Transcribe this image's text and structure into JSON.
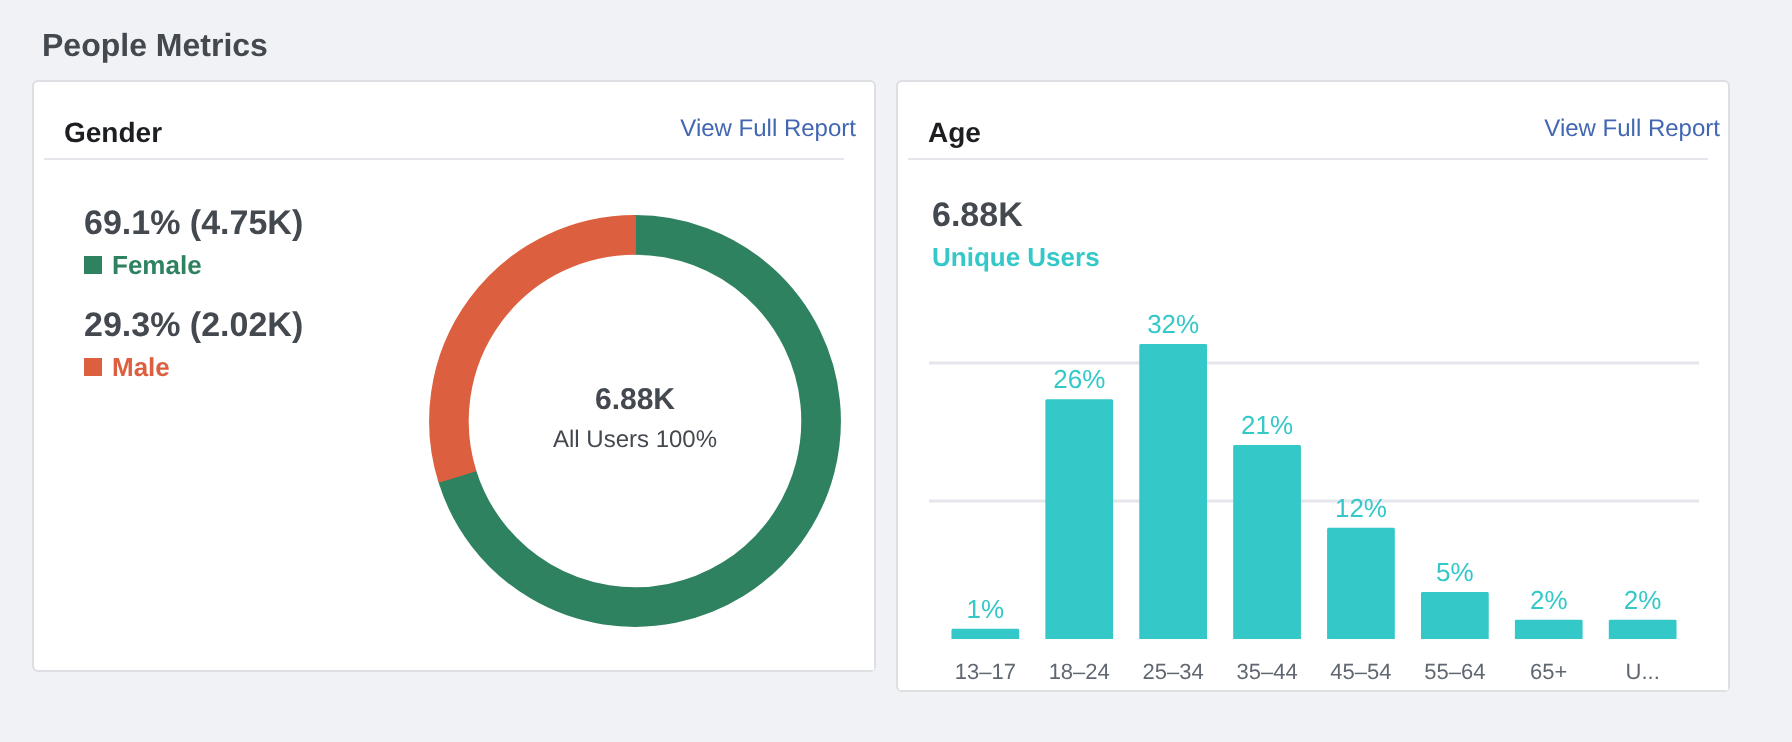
{
  "chart_data": [
    {
      "type": "donut",
      "title": "Gender",
      "categories": [
        "Female",
        "Male"
      ],
      "values": [
        69.1,
        29.3
      ],
      "value_labels": [
        "69.1% (4.75K)",
        "29.3% (2.02K)"
      ],
      "colors": [
        "#2f8260",
        "#dc6040"
      ],
      "legend": "left",
      "annotations": [
        "People Metrics",
        "View Full Report",
        "6.88K",
        "All Users 100%"
      ]
    },
    {
      "type": "bar",
      "title": "Age",
      "categories": [
        "13–17",
        "18–24",
        "25–34",
        "35–44",
        "45–54",
        "55–64",
        "65+",
        "U..."
      ],
      "values": [
        1,
        26,
        32,
        21,
        12,
        5,
        2,
        2
      ],
      "value_labels": [
        "1%",
        "26%",
        "32%",
        "21%",
        "12%",
        "5%",
        "2%",
        "2%"
      ],
      "color": "#34c8c8",
      "ref_lines": [
        {
          "axis": "y",
          "value": 15,
          "color": "#e4e6eb"
        },
        {
          "axis": "y",
          "value": 30,
          "color": "#e4e6eb"
        }
      ],
      "tick_labels": "x",
      "annotations": [
        "View Full Report",
        "6.88K",
        "Unique Users"
      ]
    }
  ]
}
